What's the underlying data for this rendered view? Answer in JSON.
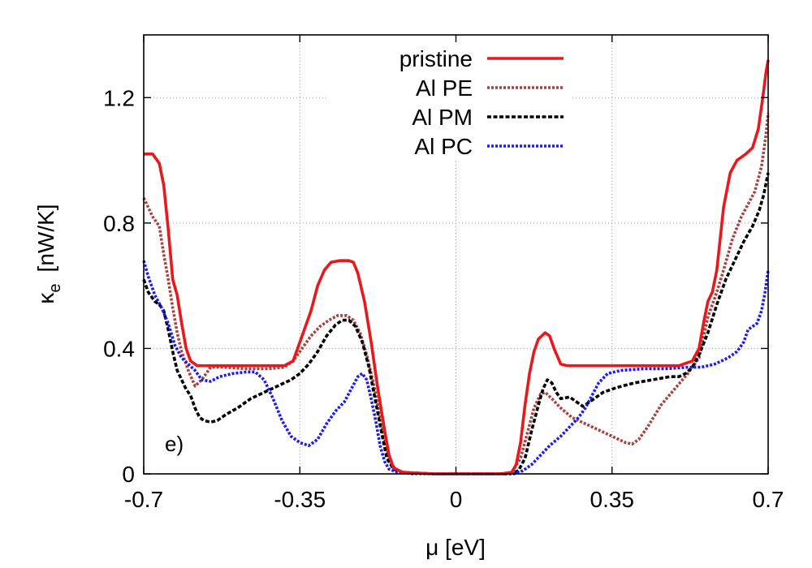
{
  "chart_data": {
    "type": "line",
    "xlabel": "μ [eV]",
    "ylabel": "κe [nW/K]",
    "ylabel_main": "κ",
    "ylabel_sub": "e",
    "ylabel_unit": "[nW/K]",
    "panel_label": "e)",
    "xlim": [
      -0.7,
      0.7
    ],
    "ylim": [
      0,
      1.4
    ],
    "x_ticks": [
      -0.7,
      -0.35,
      0,
      0.35,
      0.7
    ],
    "x_tick_labels": [
      "-0.7",
      "-0.35",
      "0",
      "0.35",
      "0.7"
    ],
    "y_ticks": [
      0,
      0.4,
      0.8,
      1.2
    ],
    "y_tick_labels": [
      "0",
      "0.4",
      "0.8",
      "1.2"
    ],
    "grid": true,
    "legend_position": "top-center",
    "series": [
      {
        "name": "pristine",
        "color": "#e8181c",
        "dash": "solid",
        "points": [
          [
            -0.7,
            1.02
          ],
          [
            -0.68,
            1.02
          ],
          [
            -0.665,
            0.99
          ],
          [
            -0.655,
            0.92
          ],
          [
            -0.645,
            0.78
          ],
          [
            -0.635,
            0.62
          ],
          [
            -0.625,
            0.57
          ],
          [
            -0.615,
            0.48
          ],
          [
            -0.605,
            0.4
          ],
          [
            -0.595,
            0.36
          ],
          [
            -0.58,
            0.345
          ],
          [
            -0.55,
            0.345
          ],
          [
            -0.45,
            0.345
          ],
          [
            -0.385,
            0.345
          ],
          [
            -0.365,
            0.36
          ],
          [
            -0.345,
            0.44
          ],
          [
            -0.325,
            0.52
          ],
          [
            -0.31,
            0.6
          ],
          [
            -0.295,
            0.65
          ],
          [
            -0.28,
            0.675
          ],
          [
            -0.26,
            0.68
          ],
          [
            -0.24,
            0.68
          ],
          [
            -0.23,
            0.675
          ],
          [
            -0.22,
            0.64
          ],
          [
            -0.205,
            0.55
          ],
          [
            -0.19,
            0.42
          ],
          [
            -0.175,
            0.27
          ],
          [
            -0.16,
            0.14
          ],
          [
            -0.15,
            0.06
          ],
          [
            -0.14,
            0.02
          ],
          [
            -0.12,
            0.005
          ],
          [
            -0.05,
            0.0
          ],
          [
            0.05,
            0.0
          ],
          [
            0.1,
            0.0
          ],
          [
            0.125,
            0.005
          ],
          [
            0.135,
            0.03
          ],
          [
            0.145,
            0.1
          ],
          [
            0.155,
            0.22
          ],
          [
            0.165,
            0.32
          ],
          [
            0.175,
            0.39
          ],
          [
            0.185,
            0.43
          ],
          [
            0.2,
            0.45
          ],
          [
            0.21,
            0.44
          ],
          [
            0.22,
            0.4
          ],
          [
            0.235,
            0.35
          ],
          [
            0.25,
            0.345
          ],
          [
            0.3,
            0.345
          ],
          [
            0.4,
            0.345
          ],
          [
            0.5,
            0.345
          ],
          [
            0.53,
            0.36
          ],
          [
            0.545,
            0.4
          ],
          [
            0.555,
            0.48
          ],
          [
            0.565,
            0.55
          ],
          [
            0.575,
            0.58
          ],
          [
            0.585,
            0.65
          ],
          [
            0.6,
            0.85
          ],
          [
            0.615,
            0.96
          ],
          [
            0.63,
            1.0
          ],
          [
            0.65,
            1.02
          ],
          [
            0.665,
            1.04
          ],
          [
            0.678,
            1.1
          ],
          [
            0.688,
            1.2
          ],
          [
            0.695,
            1.28
          ],
          [
            0.7,
            1.32
          ]
        ]
      },
      {
        "name": "Al PE",
        "color": "#a5443f",
        "dash": "dotted",
        "points": [
          [
            -0.7,
            0.88
          ],
          [
            -0.68,
            0.82
          ],
          [
            -0.665,
            0.79
          ],
          [
            -0.655,
            0.7
          ],
          [
            -0.645,
            0.62
          ],
          [
            -0.635,
            0.53
          ],
          [
            -0.625,
            0.45
          ],
          [
            -0.615,
            0.39
          ],
          [
            -0.6,
            0.33
          ],
          [
            -0.585,
            0.28
          ],
          [
            -0.57,
            0.3
          ],
          [
            -0.55,
            0.34
          ],
          [
            -0.52,
            0.34
          ],
          [
            -0.47,
            0.335
          ],
          [
            -0.42,
            0.335
          ],
          [
            -0.385,
            0.34
          ],
          [
            -0.365,
            0.36
          ],
          [
            -0.345,
            0.4
          ],
          [
            -0.325,
            0.44
          ],
          [
            -0.305,
            0.47
          ],
          [
            -0.285,
            0.49
          ],
          [
            -0.265,
            0.505
          ],
          [
            -0.245,
            0.505
          ],
          [
            -0.23,
            0.49
          ],
          [
            -0.215,
            0.45
          ],
          [
            -0.2,
            0.38
          ],
          [
            -0.185,
            0.29
          ],
          [
            -0.17,
            0.18
          ],
          [
            -0.155,
            0.08
          ],
          [
            -0.145,
            0.03
          ],
          [
            -0.13,
            0.01
          ],
          [
            -0.1,
            0.0
          ],
          [
            0.1,
            0.0
          ],
          [
            0.125,
            0.005
          ],
          [
            0.145,
            0.05
          ],
          [
            0.16,
            0.13
          ],
          [
            0.175,
            0.21
          ],
          [
            0.19,
            0.255
          ],
          [
            0.2,
            0.26
          ],
          [
            0.215,
            0.24
          ],
          [
            0.235,
            0.21
          ],
          [
            0.26,
            0.18
          ],
          [
            0.29,
            0.16
          ],
          [
            0.32,
            0.14
          ],
          [
            0.35,
            0.12
          ],
          [
            0.38,
            0.1
          ],
          [
            0.395,
            0.095
          ],
          [
            0.41,
            0.11
          ],
          [
            0.43,
            0.15
          ],
          [
            0.46,
            0.22
          ],
          [
            0.49,
            0.27
          ],
          [
            0.52,
            0.32
          ],
          [
            0.545,
            0.37
          ],
          [
            0.565,
            0.5
          ],
          [
            0.585,
            0.58
          ],
          [
            0.6,
            0.65
          ],
          [
            0.62,
            0.75
          ],
          [
            0.64,
            0.82
          ],
          [
            0.655,
            0.86
          ],
          [
            0.67,
            0.9
          ],
          [
            0.685,
            0.98
          ],
          [
            0.695,
            1.08
          ],
          [
            0.7,
            1.15
          ]
        ]
      },
      {
        "name": "Al PM",
        "color": "#000000",
        "dash": "dashed",
        "points": [
          [
            -0.7,
            0.62
          ],
          [
            -0.69,
            0.58
          ],
          [
            -0.675,
            0.55
          ],
          [
            -0.665,
            0.54
          ],
          [
            -0.655,
            0.52
          ],
          [
            -0.645,
            0.46
          ],
          [
            -0.635,
            0.39
          ],
          [
            -0.625,
            0.33
          ],
          [
            -0.615,
            0.3
          ],
          [
            -0.605,
            0.27
          ],
          [
            -0.595,
            0.25
          ],
          [
            -0.585,
            0.21
          ],
          [
            -0.575,
            0.18
          ],
          [
            -0.565,
            0.17
          ],
          [
            -0.55,
            0.165
          ],
          [
            -0.535,
            0.17
          ],
          [
            -0.515,
            0.19
          ],
          [
            -0.49,
            0.21
          ],
          [
            -0.46,
            0.24
          ],
          [
            -0.43,
            0.26
          ],
          [
            -0.4,
            0.28
          ],
          [
            -0.37,
            0.3
          ],
          [
            -0.35,
            0.32
          ],
          [
            -0.33,
            0.35
          ],
          [
            -0.31,
            0.39
          ],
          [
            -0.29,
            0.44
          ],
          [
            -0.27,
            0.475
          ],
          [
            -0.255,
            0.49
          ],
          [
            -0.24,
            0.49
          ],
          [
            -0.225,
            0.47
          ],
          [
            -0.21,
            0.42
          ],
          [
            -0.195,
            0.34
          ],
          [
            -0.18,
            0.23
          ],
          [
            -0.165,
            0.12
          ],
          [
            -0.155,
            0.05
          ],
          [
            -0.14,
            0.015
          ],
          [
            -0.12,
            0.005
          ],
          [
            -0.05,
            0.0
          ],
          [
            0.05,
            0.0
          ],
          [
            0.12,
            0.0
          ],
          [
            0.14,
            0.01
          ],
          [
            0.155,
            0.05
          ],
          [
            0.17,
            0.14
          ],
          [
            0.185,
            0.22
          ],
          [
            0.195,
            0.27
          ],
          [
            0.205,
            0.3
          ],
          [
            0.215,
            0.29
          ],
          [
            0.225,
            0.26
          ],
          [
            0.235,
            0.24
          ],
          [
            0.255,
            0.245
          ],
          [
            0.27,
            0.23
          ],
          [
            0.285,
            0.215
          ],
          [
            0.3,
            0.23
          ],
          [
            0.33,
            0.26
          ],
          [
            0.36,
            0.275
          ],
          [
            0.4,
            0.29
          ],
          [
            0.44,
            0.3
          ],
          [
            0.48,
            0.31
          ],
          [
            0.5,
            0.31
          ],
          [
            0.515,
            0.32
          ],
          [
            0.53,
            0.34
          ],
          [
            0.545,
            0.38
          ],
          [
            0.565,
            0.45
          ],
          [
            0.585,
            0.54
          ],
          [
            0.605,
            0.62
          ],
          [
            0.625,
            0.68
          ],
          [
            0.645,
            0.74
          ],
          [
            0.665,
            0.79
          ],
          [
            0.68,
            0.84
          ],
          [
            0.69,
            0.89
          ],
          [
            0.7,
            0.96
          ]
        ]
      },
      {
        "name": "Al PC",
        "color": "#1a1aff",
        "dash": "dotted",
        "points": [
          [
            -0.7,
            0.68
          ],
          [
            -0.69,
            0.63
          ],
          [
            -0.675,
            0.57
          ],
          [
            -0.66,
            0.53
          ],
          [
            -0.645,
            0.48
          ],
          [
            -0.63,
            0.41
          ],
          [
            -0.615,
            0.37
          ],
          [
            -0.6,
            0.35
          ],
          [
            -0.585,
            0.33
          ],
          [
            -0.57,
            0.3
          ],
          [
            -0.55,
            0.295
          ],
          [
            -0.53,
            0.31
          ],
          [
            -0.5,
            0.32
          ],
          [
            -0.47,
            0.325
          ],
          [
            -0.45,
            0.325
          ],
          [
            -0.43,
            0.3
          ],
          [
            -0.41,
            0.24
          ],
          [
            -0.39,
            0.17
          ],
          [
            -0.37,
            0.12
          ],
          [
            -0.35,
            0.1
          ],
          [
            -0.33,
            0.09
          ],
          [
            -0.31,
            0.11
          ],
          [
            -0.29,
            0.16
          ],
          [
            -0.27,
            0.2
          ],
          [
            -0.25,
            0.23
          ],
          [
            -0.235,
            0.27
          ],
          [
            -0.22,
            0.31
          ],
          [
            -0.21,
            0.32
          ],
          [
            -0.2,
            0.3
          ],
          [
            -0.19,
            0.24
          ],
          [
            -0.18,
            0.17
          ],
          [
            -0.17,
            0.09
          ],
          [
            -0.16,
            0.04
          ],
          [
            -0.15,
            0.015
          ],
          [
            -0.13,
            0.005
          ],
          [
            -0.05,
            0.0
          ],
          [
            0.05,
            0.0
          ],
          [
            0.13,
            0.0
          ],
          [
            0.15,
            0.01
          ],
          [
            0.17,
            0.03
          ],
          [
            0.19,
            0.06
          ],
          [
            0.21,
            0.09
          ],
          [
            0.235,
            0.12
          ],
          [
            0.255,
            0.15
          ],
          [
            0.275,
            0.18
          ],
          [
            0.29,
            0.21
          ],
          [
            0.305,
            0.25
          ],
          [
            0.32,
            0.29
          ],
          [
            0.34,
            0.32
          ],
          [
            0.37,
            0.33
          ],
          [
            0.42,
            0.335
          ],
          [
            0.47,
            0.335
          ],
          [
            0.52,
            0.34
          ],
          [
            0.55,
            0.34
          ],
          [
            0.58,
            0.35
          ],
          [
            0.61,
            0.37
          ],
          [
            0.63,
            0.39
          ],
          [
            0.645,
            0.42
          ],
          [
            0.655,
            0.46
          ],
          [
            0.665,
            0.47
          ],
          [
            0.675,
            0.48
          ],
          [
            0.685,
            0.52
          ],
          [
            0.693,
            0.58
          ],
          [
            0.7,
            0.65
          ]
        ]
      }
    ]
  }
}
